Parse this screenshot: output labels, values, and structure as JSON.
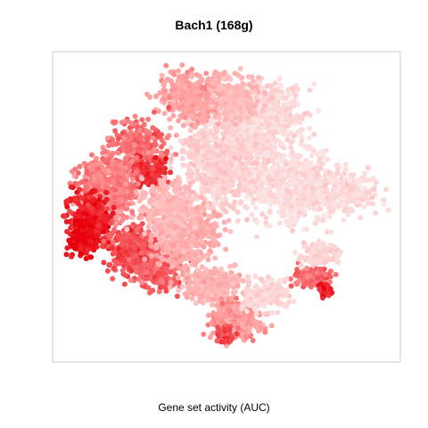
{
  "chart_data": {
    "type": "scatter",
    "title": "Bach1 (168g)",
    "xlabel": "Gene set activity (AUC)",
    "ylabel": "",
    "grid": false,
    "legend": "none",
    "color_scale": {
      "low": "#fce4e4",
      "mid": "#ff9d9d",
      "high": "#e8000a"
    },
    "border_color": "#cccccc"
  }
}
